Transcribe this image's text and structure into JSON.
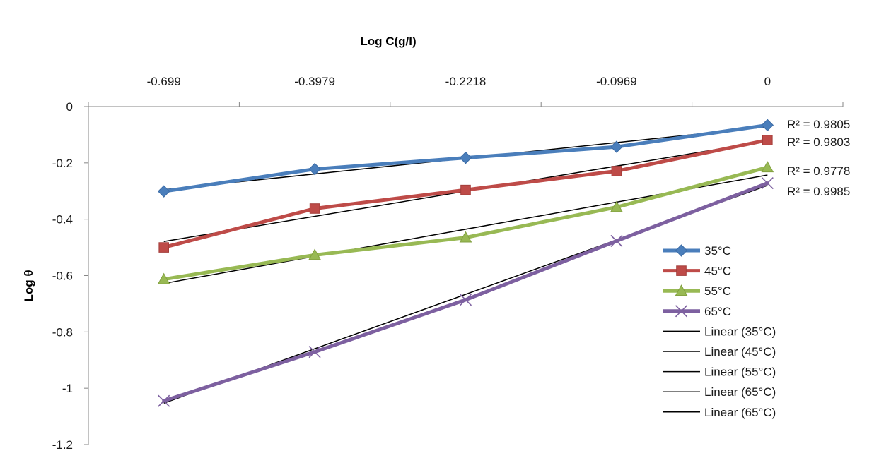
{
  "chart_data": {
    "type": "line",
    "title": "",
    "xlabel": "Log C(g/l)",
    "ylabel": "Log θ",
    "categories": [
      "-0.699",
      "-0.3979",
      "-0.2218",
      "-0.0969",
      "0"
    ],
    "ylim": [
      -1.2,
      0
    ],
    "yticks": [
      "0",
      "-0.2",
      "-0.4",
      "-0.6",
      "-0.8",
      "-1",
      "-1.2"
    ],
    "ytick_values": [
      0,
      -0.2,
      -0.4,
      -0.6,
      -0.8,
      -1,
      -1.2
    ],
    "series": [
      {
        "name": "35°C",
        "color": "#4a7ebb",
        "marker": "diamond",
        "values": [
          -0.301,
          -0.222,
          -0.182,
          -0.143,
          -0.066
        ]
      },
      {
        "name": "45°C",
        "color": "#be4b48",
        "marker": "square",
        "values": [
          -0.5,
          -0.362,
          -0.296,
          -0.229,
          -0.119
        ]
      },
      {
        "name": "55°C",
        "color": "#98b954",
        "marker": "triangle",
        "values": [
          -0.613,
          -0.527,
          -0.465,
          -0.357,
          -0.216
        ]
      },
      {
        "name": "65°C",
        "color": "#7d60a0",
        "marker": "x",
        "values": [
          -1.045,
          -0.871,
          -0.686,
          -0.477,
          -0.272
        ]
      }
    ],
    "trendlines": [
      {
        "name": "Linear (35°C)",
        "color": "#000000",
        "start": -0.295,
        "end": -0.072,
        "r2": "R² = 0.9805"
      },
      {
        "name": "Linear (45°C)",
        "color": "#000000",
        "start": -0.479,
        "end": -0.122,
        "r2": "R² = 0.9803"
      },
      {
        "name": "Linear (55°C)",
        "color": "#000000",
        "start": -0.628,
        "end": -0.243,
        "r2": "R² = 0.9778"
      },
      {
        "name": "Linear (65°C)",
        "color": "#000000",
        "start": -1.053,
        "end": -0.28,
        "r2": "R² = 0.9985"
      }
    ],
    "legend": {
      "position": "right",
      "entries": [
        "35°C",
        "45°C",
        "55°C",
        "65°C",
        "Linear (35°C)",
        "Linear (45°C)",
        "Linear (55°C)",
        "Linear (65°C)",
        "Linear (65°C)"
      ]
    },
    "grid": false
  }
}
